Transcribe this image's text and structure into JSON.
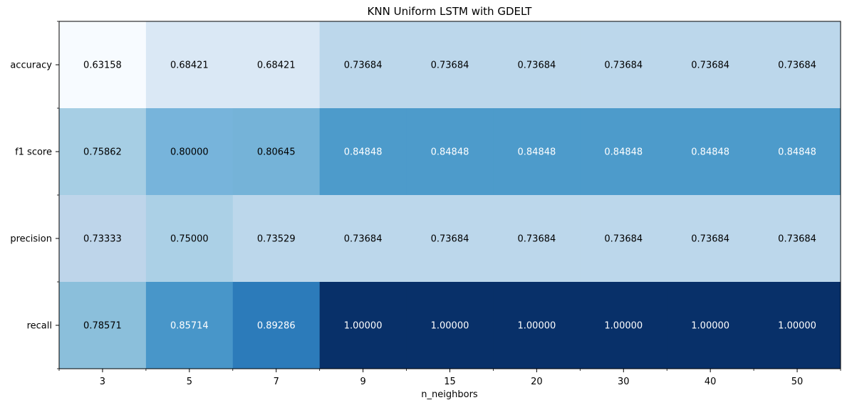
{
  "chart_data": {
    "type": "heatmap",
    "title": "KNN Uniform LSTM with GDELT",
    "xlabel": "n_neighbors",
    "ylabel": "",
    "x_categories": [
      "3",
      "5",
      "7",
      "9",
      "15",
      "20",
      "30",
      "40",
      "50"
    ],
    "y_categories": [
      "accuracy",
      "f1 score",
      "precision",
      "recall"
    ],
    "values": [
      [
        0.63158,
        0.68421,
        0.68421,
        0.73684,
        0.73684,
        0.73684,
        0.73684,
        0.73684,
        0.73684
      ],
      [
        0.75862,
        0.8,
        0.80645,
        0.84848,
        0.84848,
        0.84848,
        0.84848,
        0.84848,
        0.84848
      ],
      [
        0.73333,
        0.75,
        0.73529,
        0.73684,
        0.73684,
        0.73684,
        0.73684,
        0.73684,
        0.73684
      ],
      [
        0.78571,
        0.85714,
        0.89286,
        1.0,
        1.0,
        1.0,
        1.0,
        1.0,
        1.0
      ]
    ],
    "value_labels": [
      [
        "0.63158",
        "0.68421",
        "0.68421",
        "0.73684",
        "0.73684",
        "0.73684",
        "0.73684",
        "0.73684",
        "0.73684"
      ],
      [
        "0.75862",
        "0.80000",
        "0.80645",
        "0.84848",
        "0.84848",
        "0.84848",
        "0.84848",
        "0.84848",
        "0.84848"
      ],
      [
        "0.73333",
        "0.75000",
        "0.73529",
        "0.73684",
        "0.73684",
        "0.73684",
        "0.73684",
        "0.73684",
        "0.73684"
      ],
      [
        "0.78571",
        "0.85714",
        "0.89286",
        "1.00000",
        "1.00000",
        "1.00000",
        "1.00000",
        "1.00000",
        "1.00000"
      ]
    ],
    "colormap": "Blues",
    "value_range": [
      0.63158,
      1.0
    ],
    "grid": false,
    "legend": "none",
    "colors": {
      "cells": [
        [
          "#f7fbff",
          "#dae8f5",
          "#dae8f5",
          "#bcd7eb",
          "#bcd7eb",
          "#bcd7eb",
          "#bcd7eb",
          "#bcd7eb",
          "#bcd7eb"
        ],
        [
          "#a6cee4",
          "#77b4db",
          "#75b3d8",
          "#4d9bcb",
          "#4d9bcb",
          "#4d9bcb",
          "#4d9bcb",
          "#4d9bcb",
          "#4d9bcb"
        ],
        [
          "#bed5ea",
          "#abd0e6",
          "#bcd7eb",
          "#bcd7eb",
          "#bcd7eb",
          "#bcd7eb",
          "#bcd7eb",
          "#bcd7eb",
          "#bcd7eb"
        ],
        [
          "#8bbfdb",
          "#4896c9",
          "#2c7bba",
          "#083069",
          "#083069",
          "#083069",
          "#083069",
          "#083069",
          "#083069"
        ]
      ],
      "text_dark": "#000000",
      "text_light": "#ffffff",
      "axis": "#000000"
    }
  }
}
